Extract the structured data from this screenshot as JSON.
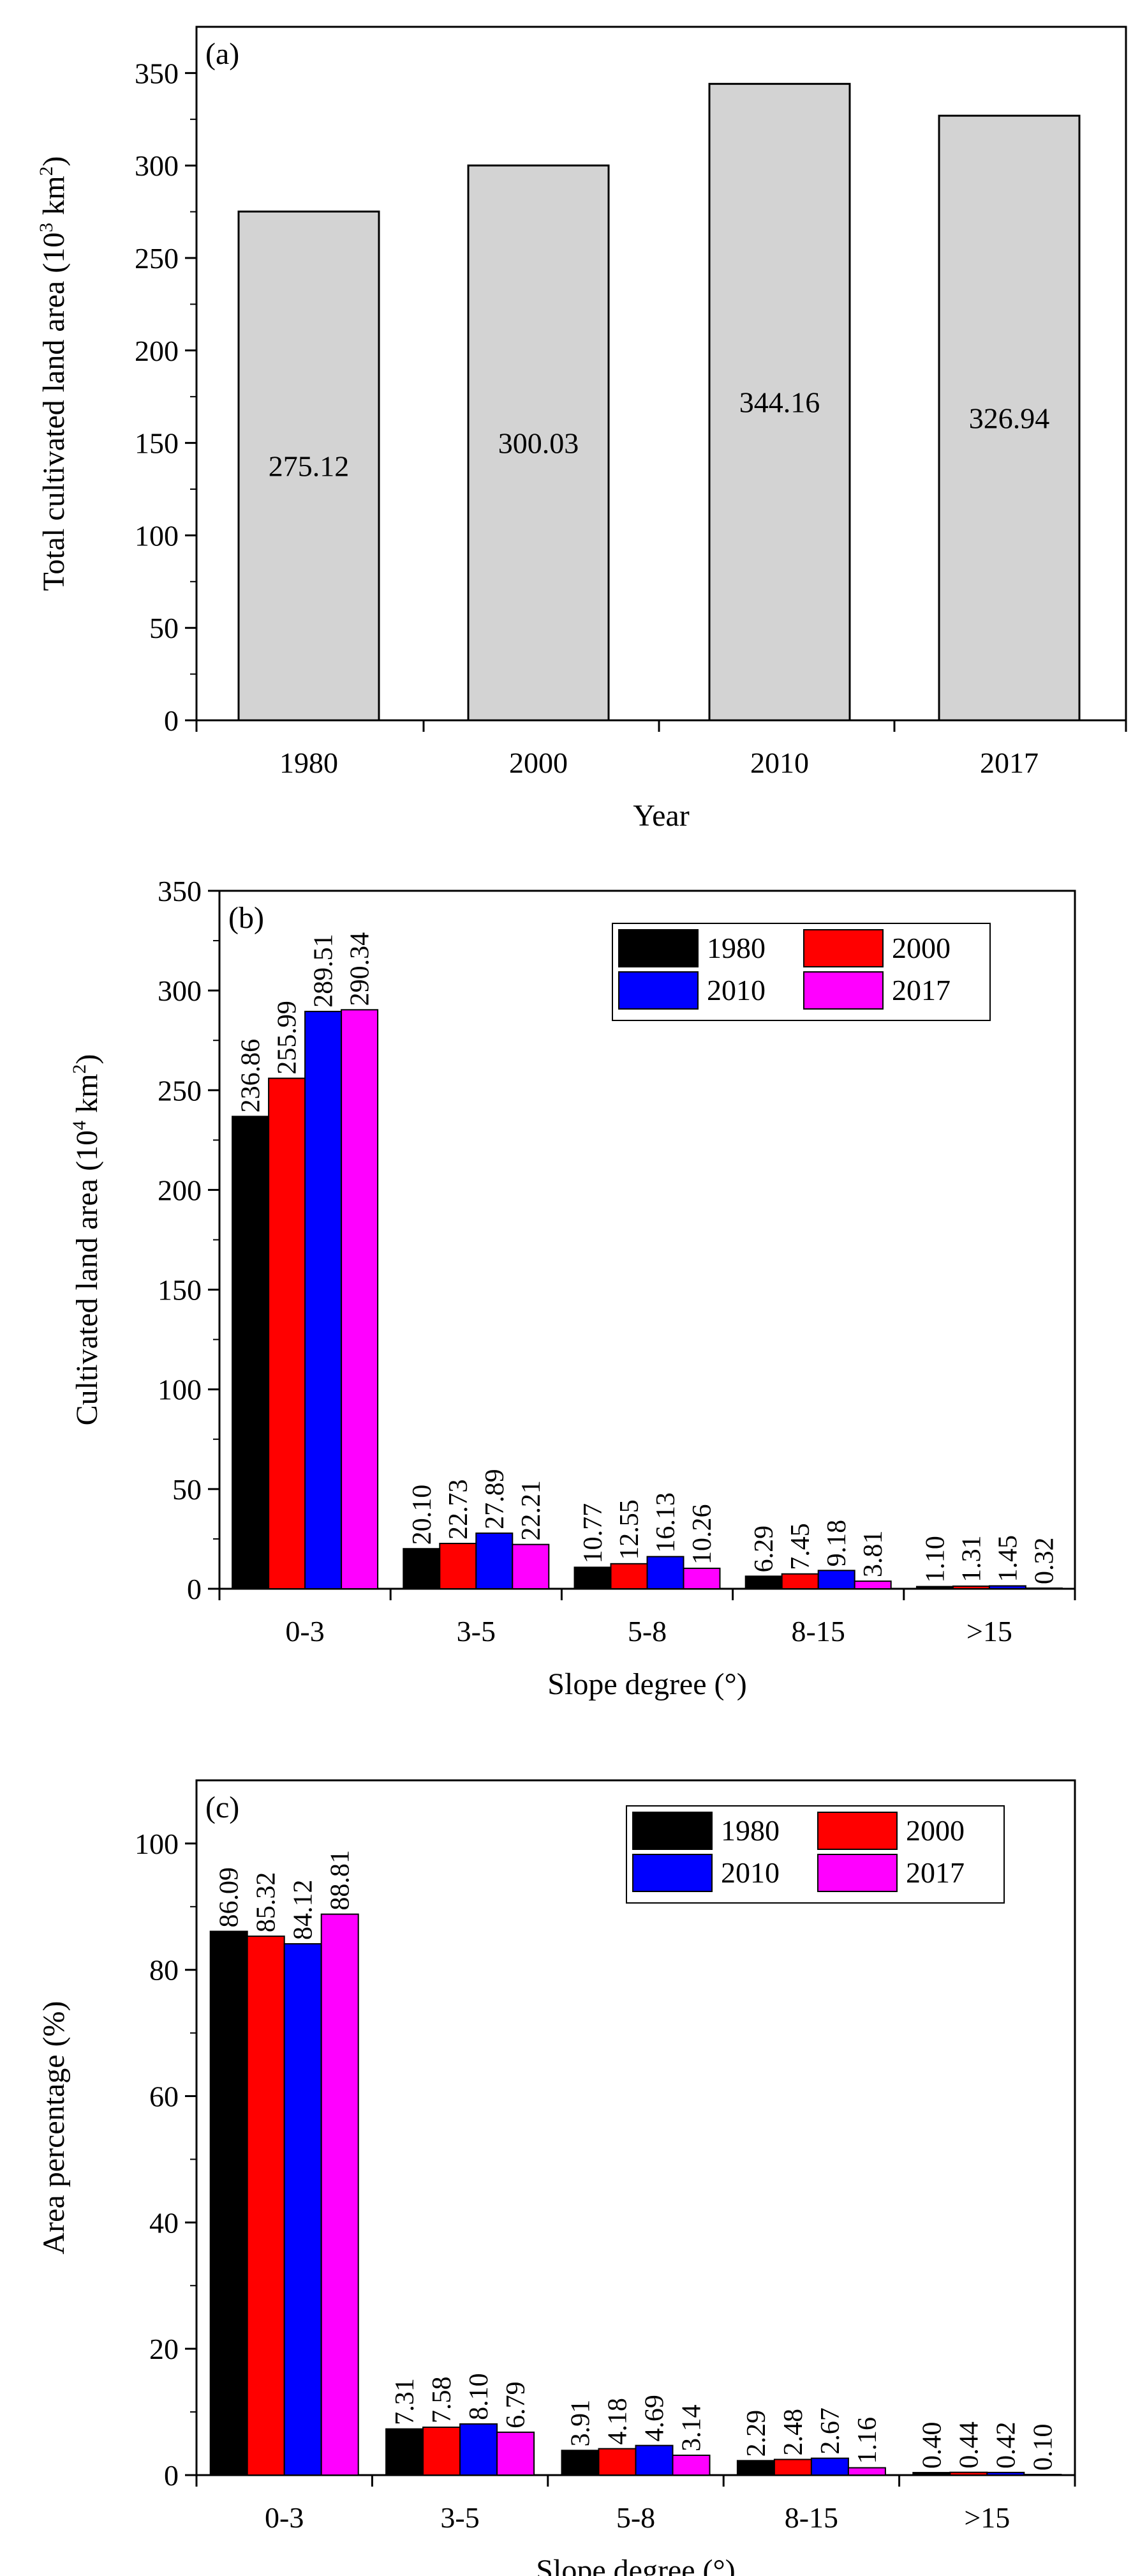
{
  "chart_data": [
    {
      "panel": "(a)",
      "type": "bar",
      "title": "",
      "xlabel": "Year",
      "ylabel": "Total cultivated land area (10³ km²)",
      "categories": [
        "1980",
        "2000",
        "2010",
        "2017"
      ],
      "values": [
        275.12,
        300.03,
        344.16,
        326.94
      ],
      "data_labels": [
        "275.12",
        "300.03",
        "344.16",
        "326.94"
      ],
      "ylim": [
        0,
        375
      ],
      "yticks": [
        0,
        50,
        100,
        150,
        200,
        250,
        300,
        350
      ],
      "colors": {
        "bar": "#d3d3d3"
      },
      "grid": false
    },
    {
      "panel": "(b)",
      "type": "bar",
      "title": "",
      "xlabel": "Slope degree (°)",
      "ylabel": "Cultivated land area (10⁴ km²)",
      "categories": [
        "0-3",
        "3-5",
        "5-8",
        "8-15",
        ">15"
      ],
      "series": [
        {
          "name": "1980",
          "color": "#000000",
          "values": [
            236.86,
            20.1,
            10.77,
            6.29,
            1.1
          ],
          "labels": [
            "236.86",
            "20.10",
            "10.77",
            "6.29",
            "1.10"
          ]
        },
        {
          "name": "2000",
          "color": "#ff0000",
          "values": [
            255.99,
            22.73,
            12.55,
            7.45,
            1.31
          ],
          "labels": [
            "255.99",
            "22.73",
            "12.55",
            "7.45",
            "1.31"
          ]
        },
        {
          "name": "2010",
          "color": "#0000ff",
          "values": [
            289.51,
            27.89,
            16.13,
            9.18,
            1.45
          ],
          "labels": [
            "289.51",
            "27.89",
            "16.13",
            "9.18",
            "1.45"
          ]
        },
        {
          "name": "2017",
          "color": "#ff00ff",
          "values": [
            290.34,
            22.21,
            10.26,
            3.81,
            0.32
          ],
          "labels": [
            "290.34",
            "22.21",
            "10.26",
            "3.81",
            "0.32"
          ]
        }
      ],
      "ylim": [
        0,
        350
      ],
      "yticks": [
        0,
        50,
        100,
        150,
        200,
        250,
        300,
        350
      ],
      "legend": "top-right",
      "grid": false
    },
    {
      "panel": "(c)",
      "type": "bar",
      "title": "",
      "xlabel": "Slope degree (°)",
      "ylabel": "Area percentage (%)",
      "categories": [
        "0-3",
        "3-5",
        "5-8",
        "8-15",
        ">15"
      ],
      "series": [
        {
          "name": "1980",
          "color": "#000000",
          "values": [
            86.09,
            7.31,
            3.91,
            2.29,
            0.4
          ],
          "labels": [
            "86.09",
            "7.31",
            "3.91",
            "2.29",
            "0.40"
          ]
        },
        {
          "name": "2000",
          "color": "#ff0000",
          "values": [
            85.32,
            7.58,
            4.18,
            2.48,
            0.44
          ],
          "labels": [
            "85.32",
            "7.58",
            "4.18",
            "2.48",
            "0.44"
          ]
        },
        {
          "name": "2010",
          "color": "#0000ff",
          "values": [
            84.12,
            8.1,
            4.69,
            2.67,
            0.42
          ],
          "labels": [
            "84.12",
            "8.10",
            "4.69",
            "2.67",
            "0.42"
          ]
        },
        {
          "name": "2017",
          "color": "#ff00ff",
          "values": [
            88.81,
            6.79,
            3.14,
            1.16,
            0.1
          ],
          "labels": [
            "88.81",
            "6.79",
            "3.14",
            "1.16",
            "0.10"
          ]
        }
      ],
      "ylim": [
        0,
        110
      ],
      "yticks": [
        0,
        20,
        40,
        60,
        80,
        100
      ],
      "legend": "top-right",
      "grid": false
    }
  ]
}
